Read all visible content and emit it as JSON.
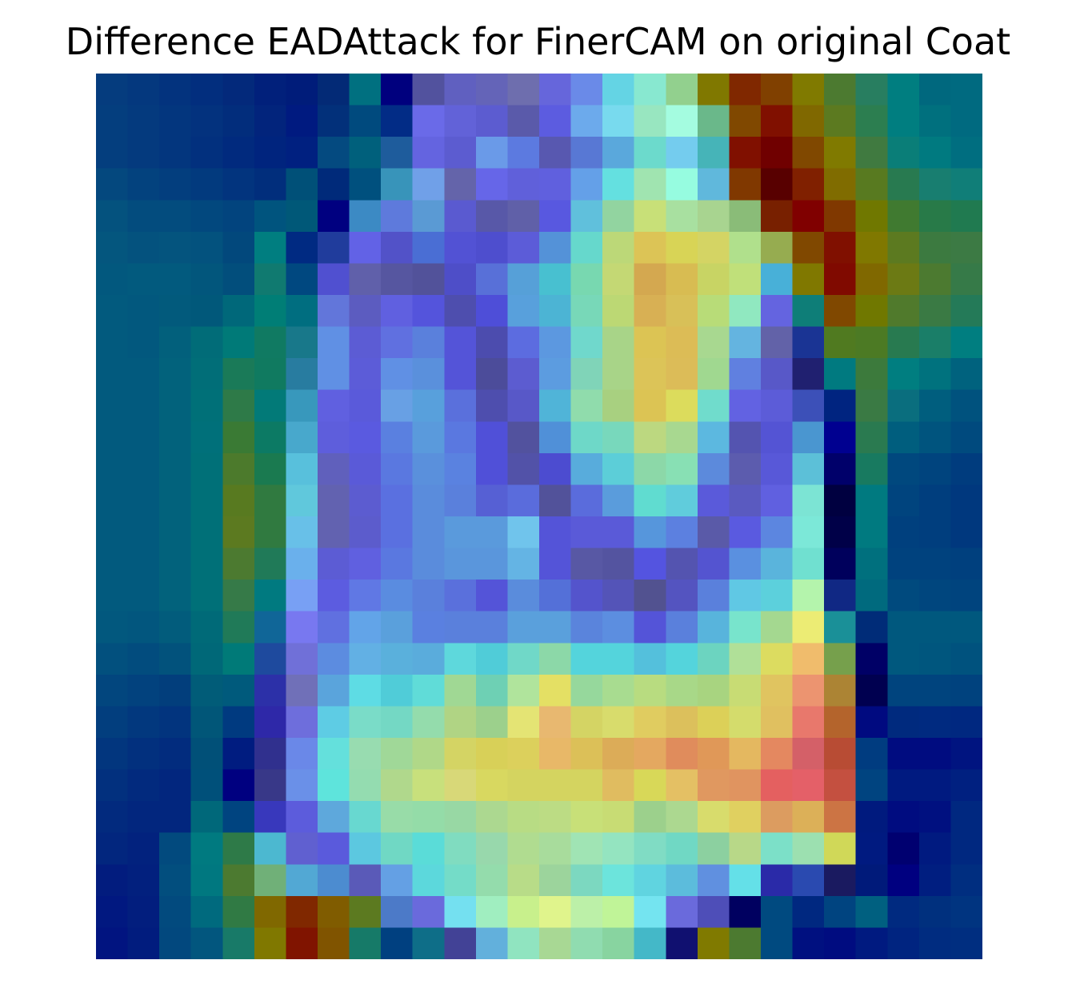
{
  "chart_data": {
    "type": "heatmap",
    "title": "Difference EADAttack for FinerCAM on original Coat",
    "xlabel": "",
    "ylabel": "",
    "axes_visible": false,
    "grid": false,
    "legend": "none",
    "colorscale": "jet overlaid on grayscale image",
    "rows": 28,
    "cols": 28,
    "cells": [
      [
        "#053C7E",
        "#04387E",
        "#03337E",
        "#022E7E",
        "#03297B",
        "#01207B",
        "#001C7A",
        "#032A76",
        "#007080",
        "#00007E",
        "#52529E",
        "#6060C0",
        "#6464B8",
        "#6E6EAE",
        "#6666DB",
        "#6A8AE8",
        "#64D4E4",
        "#88E8D0",
        "#92D08E",
        "#807800",
        "#802800",
        "#804000",
        "#807A00",
        "#4C7A30",
        "#287E60",
        "#007E80",
        "#00687E",
        "#006A80"
      ],
      [
        "#043E7E",
        "#043A7E",
        "#03367E",
        "#03327E",
        "#022D7C",
        "#02247C",
        "#001A80",
        "#02307A",
        "#004A7E",
        "#022C86",
        "#6A6AE8",
        "#6262D8",
        "#5C5CD0",
        "#5A5AAA",
        "#5C5CE0",
        "#6CAAEC",
        "#78DAEE",
        "#98E6C0",
        "#A4FCE0",
        "#6AB88A",
        "#804800",
        "#801000",
        "#806800",
        "#5C7A20",
        "#2C7E50",
        "#007E80",
        "#00707E",
        "#006A80"
      ],
      [
        "#043E7E",
        "#043A7E",
        "#03367E",
        "#02307E",
        "#012A7E",
        "#00247E",
        "#002080",
        "#044A80",
        "#00607C",
        "#1E5C9C",
        "#6464E0",
        "#5C5CD0",
        "#6A9AE8",
        "#5C7AE0",
        "#5858B0",
        "#5878D4",
        "#5AA8DC",
        "#6CDACC",
        "#74CCEE",
        "#46B4B8",
        "#801000",
        "#700000",
        "#804800",
        "#807A00",
        "#407A40",
        "#0A7E78",
        "#007A80",
        "#006E80"
      ],
      [
        "#04487E",
        "#03427E",
        "#033E7E",
        "#023A7E",
        "#02347E",
        "#012E7C",
        "#005078",
        "#002A7A",
        "#00507E",
        "#3894BA",
        "#70A0E8",
        "#6464AA",
        "#6666E8",
        "#6060DA",
        "#6060DE",
        "#64A0E8",
        "#64E0E0",
        "#A0E4B0",
        "#96FCE0",
        "#60B8DC",
        "#803800",
        "#580000",
        "#802000",
        "#806C00",
        "#587A20",
        "#287A50",
        "#187E70",
        "#107E78"
      ],
      [
        "#04527E",
        "#034C7E",
        "#034C7E",
        "#02487E",
        "#02447E",
        "#00547E",
        "#005878",
        "#000080",
        "#3C8AC4",
        "#5E7ADC",
        "#5A9AD4",
        "#5A5AD0",
        "#5858A8",
        "#6060A8",
        "#5858E0",
        "#60C0DC",
        "#92D4A0",
        "#C8E078",
        "#A8E0A0",
        "#A8D490",
        "#8ABC78",
        "#782000",
        "#800000",
        "#803800",
        "#707800",
        "#407A30",
        "#287A48",
        "#207A50"
      ],
      [
        "#04567E",
        "#04527E",
        "#04547E",
        "#03527E",
        "#02487C",
        "#007E80",
        "#002A82",
        "#203C9C",
        "#6262E6",
        "#5252C8",
        "#4A6ED4",
        "#5252D4",
        "#4E4ECE",
        "#5C5CD8",
        "#5492D8",
        "#66D8CC",
        "#BCD878",
        "#DCC456",
        "#D8D456",
        "#D4D464",
        "#B0E08C",
        "#96AC50",
        "#804800",
        "#801000",
        "#807800",
        "#5C7A20",
        "#3C7A40",
        "#3C7A44"
      ],
      [
        "#02587E",
        "#025A7E",
        "#025A7E",
        "#02567C",
        "#024E7C",
        "#107A70",
        "#004880",
        "#5050D0",
        "#6060AA",
        "#5656A0",
        "#52529A",
        "#4E4EC8",
        "#5870D8",
        "#56A0D8",
        "#48C0D0",
        "#78D8B0",
        "#C4D874",
        "#D4A850",
        "#D8BC52",
        "#C8D464",
        "#C0E07A",
        "#48B0D8",
        "#807800",
        "#800A00",
        "#806800",
        "#6C7A14",
        "#4C7A30",
        "#367A48"
      ],
      [
        "#025A7E",
        "#02587E",
        "#025A7C",
        "#01587A",
        "#00687A",
        "#007E76",
        "#006E80",
        "#6276DA",
        "#5C5CC0",
        "#6060E0",
        "#5454DC",
        "#4E4EAE",
        "#4E4ED8",
        "#58A0DC",
        "#4CB4D4",
        "#78D8B8",
        "#BCD874",
        "#D8B054",
        "#D8C058",
        "#B8DC78",
        "#90E8C0",
        "#6464E0",
        "#0E7E78",
        "#804800",
        "#707800",
        "#507A2C",
        "#3A7A44",
        "#247A58"
      ],
      [
        "#025A7E",
        "#02587E",
        "#02607C",
        "#016C78",
        "#007A78",
        "#107A62",
        "#18788A",
        "#6090E4",
        "#5C5CD4",
        "#6070E0",
        "#5A80DC",
        "#5454D8",
        "#4C4CAE",
        "#5C6CE0",
        "#5C98E0",
        "#70D8CC",
        "#A8D488",
        "#DCC454",
        "#DCBC56",
        "#A8D890",
        "#64B4E0",
        "#6262A8",
        "#1A3494",
        "#507A20",
        "#4C7A24",
        "#287A50",
        "#1A7E68",
        "#007E80"
      ],
      [
        "#025A7E",
        "#025A7E",
        "#02627C",
        "#016E78",
        "#1A7A58",
        "#107A60",
        "#287CA0",
        "#6090E4",
        "#5C5CD8",
        "#6090E4",
        "#5A90DC",
        "#5454D8",
        "#4C4C9A",
        "#5C5CD0",
        "#5C9CE0",
        "#80D4B8",
        "#A8D488",
        "#DCC458",
        "#DCBC58",
        "#A0D890",
        "#6080E0",
        "#5858C8",
        "#202070",
        "#007A80",
        "#3C7A3C",
        "#007E80",
        "#00727E",
        "#00627E"
      ],
      [
        "#025A7E",
        "#025A7E",
        "#02627C",
        "#007078",
        "#2E7A48",
        "#027A78",
        "#3898BC",
        "#6060E0",
        "#5A5ADA",
        "#68A0E4",
        "#58A0DC",
        "#5A70DC",
        "#4E4EAE",
        "#5858C8",
        "#50B4D8",
        "#90DCAC",
        "#A8D080",
        "#DCC454",
        "#DCDC5C",
        "#70DCCC",
        "#6262E2",
        "#5C5CD8",
        "#3C50B8",
        "#002480",
        "#3A7A44",
        "#0A6E7E",
        "#005E7E",
        "#00527E"
      ],
      [
        "#025A7E",
        "#025A7E",
        "#02627C",
        "#00707A",
        "#3A7A34",
        "#0C7A64",
        "#48A8CC",
        "#5E5EDC",
        "#5A5AE0",
        "#5A80E0",
        "#5A9ADC",
        "#5A78E0",
        "#5050D8",
        "#52529E",
        "#5090D8",
        "#6ED8C8",
        "#78D8BC",
        "#BCD880",
        "#A8D890",
        "#5CB8E0",
        "#5454B0",
        "#5454D4",
        "#4A96D0",
        "#000090",
        "#2A7A50",
        "#005E7E",
        "#00547E",
        "#004A7E"
      ],
      [
        "#025A7E",
        "#025A7E",
        "#02627C",
        "#007078",
        "#4C7A2C",
        "#1A7A50",
        "#58C0DC",
        "#6060BC",
        "#5A5AD8",
        "#5A78E0",
        "#5A90DC",
        "#5A82E0",
        "#5050D8",
        "#5252A8",
        "#4C4CD0",
        "#58ACDC",
        "#5CCED8",
        "#8CD8A8",
        "#88E0B4",
        "#5C8ADC",
        "#5C5CAE",
        "#5858D8",
        "#5CC0D8",
        "#00006A",
        "#187A60",
        "#00487E",
        "#00447E",
        "#003C7E"
      ],
      [
        "#025A7E",
        "#025A7E",
        "#02627C",
        "#007078",
        "#587A20",
        "#307A40",
        "#60C8DC",
        "#6262B0",
        "#5C5CD0",
        "#5A70E0",
        "#5A8CDC",
        "#5A80DC",
        "#5660D4",
        "#5A6CDC",
        "#52529A",
        "#5A6CDC",
        "#5A9CDC",
        "#60DCD0",
        "#60CCDC",
        "#5A5ADA",
        "#5A5AC0",
        "#6060E0",
        "#7CE4D4",
        "#000040",
        "#007A80",
        "#00447E",
        "#003E7E",
        "#00387E"
      ],
      [
        "#025A7E",
        "#025A7E",
        "#02627C",
        "#007078",
        "#5C7A20",
        "#307A40",
        "#68C0E8",
        "#6262B0",
        "#5C5CCC",
        "#5A70E0",
        "#5A8CDC",
        "#5A9ADC",
        "#5A9ADC",
        "#70C4EC",
        "#5454D8",
        "#5A5AD8",
        "#5A5AD8",
        "#5696DC",
        "#5C80E0",
        "#5A5AA8",
        "#5A5AE0",
        "#5C86E0",
        "#7CE8D8",
        "#000048",
        "#007A80",
        "#00407E",
        "#003E7E",
        "#00387E"
      ],
      [
        "#025A7E",
        "#025A7E",
        "#02627C",
        "#007078",
        "#4C7A30",
        "#207A58",
        "#6AB0EC",
        "#5C5CD4",
        "#6060E0",
        "#5A78E0",
        "#5A8CDC",
        "#5A96DC",
        "#5A96DC",
        "#64B4E4",
        "#5454D8",
        "#5858A4",
        "#5454A0",
        "#5454E0",
        "#5454B0",
        "#5454D0",
        "#5A90E0",
        "#5AB4DC",
        "#70E0D0",
        "#00005C",
        "#00707E",
        "#00427E",
        "#00427E",
        "#00407E"
      ],
      [
        "#025A7E",
        "#025A7E",
        "#02627C",
        "#007078",
        "#367A48",
        "#007A80",
        "#78A0F4",
        "#5C5CE0",
        "#6078E4",
        "#5A8CE0",
        "#5A80DC",
        "#5A70DC",
        "#5454D8",
        "#5A8CDC",
        "#5470D8",
        "#5454CC",
        "#5454B8",
        "#525290",
        "#5454C0",
        "#5A80DC",
        "#60C8E4",
        "#5CD0DC",
        "#B4F4AC",
        "#102884",
        "#006A7E",
        "#004A7E",
        "#00467E",
        "#00447E"
      ],
      [
        "#02587E",
        "#02567E",
        "#025C7C",
        "#006A78",
        "#207A58",
        "#106698",
        "#7878F0",
        "#6070E0",
        "#62A4E8",
        "#5AA0DC",
        "#5A80E0",
        "#5A80DC",
        "#5A80DC",
        "#5AA0DC",
        "#5AA0DC",
        "#5A84DC",
        "#5C8EE0",
        "#5454D8",
        "#5A80DC",
        "#58B4DC",
        "#78E4CC",
        "#A4D890",
        "#ECEC74",
        "#1A9098",
        "#002C78",
        "#00587E",
        "#00587E",
        "#00587E"
      ],
      [
        "#02507E",
        "#024C7E",
        "#02527C",
        "#006878",
        "#007A78",
        "#1E4A9E",
        "#7070D8",
        "#5C8CE0",
        "#62B0E4",
        "#5AB0DC",
        "#5AACDC",
        "#5ED8DC",
        "#50CCD8",
        "#70D8C8",
        "#8CD8A8",
        "#54D4DC",
        "#54D4DC",
        "#54C0DC",
        "#54D4DC",
        "#6CD4C0",
        "#B0E098",
        "#DCDC60",
        "#F0BC6C",
        "#76A04C",
        "#000066",
        "#00587E",
        "#00567E",
        "#00527E"
      ],
      [
        "#02467E",
        "#02427E",
        "#023E7C",
        "#015C78",
        "#005A7C",
        "#2C30A8",
        "#7070B8",
        "#5AA4DC",
        "#5EDCE4",
        "#50CCD8",
        "#60DCD8",
        "#A0D894",
        "#6ED0B4",
        "#B0E49C",
        "#E4E064",
        "#96D89C",
        "#A8DC90",
        "#B8DC80",
        "#A8D888",
        "#A8D480",
        "#C8DC74",
        "#E0C460",
        "#EC9470",
        "#AC8434",
        "#000050",
        "#00447E",
        "#00447E",
        "#00427E"
      ],
      [
        "#023E7E",
        "#02387E",
        "#02347E",
        "#015678",
        "#003A80",
        "#2E28A8",
        "#6E6EDC",
        "#5ECCE4",
        "#7ADCC8",
        "#74D8C4",
        "#94DCAC",
        "#B0D484",
        "#9CD08C",
        "#E4E474",
        "#E8B870",
        "#D4D464",
        "#D8DC6C",
        "#E0CC60",
        "#DCC05C",
        "#DCD058",
        "#D4DC6C",
        "#E0C060",
        "#E8786C",
        "#B4642C",
        "#000A80",
        "#002A7E",
        "#002A80",
        "#002880"
      ],
      [
        "#02367E",
        "#02307E",
        "#022C7E",
        "#015078",
        "#001C80",
        "#30308E",
        "#6A88E8",
        "#64E0DC",
        "#98DCB0",
        "#A0D898",
        "#B0D888",
        "#D4D464",
        "#D8D058",
        "#DCD05C",
        "#E8B868",
        "#DCC058",
        "#DCAC58",
        "#E4A860",
        "#E08C5C",
        "#E09858",
        "#E4B860",
        "#E48860",
        "#D46068",
        "#B84C34",
        "#003C80",
        "#000C80",
        "#000C80",
        "#001480"
      ],
      [
        "#02307E",
        "#022A7E",
        "#02267E",
        "#00507A",
        "#000080",
        "#383888",
        "#6A90E8",
        "#5EE4DC",
        "#94DCB0",
        "#B0D88C",
        "#C8E07C",
        "#D8D878",
        "#D8D860",
        "#D4D460",
        "#D4D460",
        "#D4D460",
        "#E0BC60",
        "#D8D858",
        "#E4C064",
        "#E09860",
        "#E09460",
        "#E46060",
        "#E46068",
        "#C45040",
        "#004480",
        "#001A80",
        "#001A80",
        "#002080"
      ],
      [
        "#022A7E",
        "#02267E",
        "#02267E",
        "#00687A",
        "#004480",
        "#3838BC",
        "#5C5CDC",
        "#5EA8DC",
        "#68D8D0",
        "#98DCA8",
        "#94DCA8",
        "#98D8A4",
        "#ACD890",
        "#B8DC84",
        "#BCDC84",
        "#C8E078",
        "#C8DC74",
        "#9CD08C",
        "#ACD890",
        "#D8DC6C",
        "#E0D060",
        "#DC9C60",
        "#DCB058",
        "#CC7444",
        "#001A7E",
        "#000C80",
        "#001080",
        "#002880"
      ],
      [
        "#02267E",
        "#02227E",
        "#024A7E",
        "#007A80",
        "#2E7A48",
        "#4CB8D0",
        "#6060D0",
        "#5A5ADC",
        "#5CC8E0",
        "#70D8C4",
        "#5ADCD8",
        "#80DCC0",
        "#98D8AC",
        "#B0DC90",
        "#A8DC9C",
        "#A0E4B4",
        "#94E4C0",
        "#80DCC4",
        "#70D8C4",
        "#8CD0A0",
        "#B8D888",
        "#7CE0C8",
        "#9CE0B0",
        "#D0D858",
        "#001A80",
        "#000070",
        "#001A80",
        "#002880"
      ],
      [
        "#021C7E",
        "#02207E",
        "#024E7E",
        "#007880",
        "#4C7A30",
        "#70B078",
        "#52A8D4",
        "#4C8CD0",
        "#5A5AB8",
        "#64A0E4",
        "#5CD8DC",
        "#74DCC8",
        "#94DCAC",
        "#B8DC88",
        "#9CD49C",
        "#7CD8C0",
        "#6CE4DC",
        "#60D4E0",
        "#5CBCDC",
        "#6090E0",
        "#64E0E8",
        "#2A2AA8",
        "#2A4AB0",
        "#1A1A60",
        "#001A7A",
        "#000080",
        "#001E80",
        "#002E80"
      ],
      [
        "#011880",
        "#021E7E",
        "#024A7E",
        "#006A7E",
        "#307A44",
        "#806800",
        "#802800",
        "#805C00",
        "#5C7A20",
        "#4C7AC8",
        "#6A6ADC",
        "#74E0F0",
        "#A0EEC0",
        "#C8F08C",
        "#E0F48C",
        "#BCF0A8",
        "#C0F498",
        "#74E4F0",
        "#6A6ADC",
        "#4E4EB8",
        "#000060",
        "#004A80",
        "#002880",
        "#004480",
        "#006080",
        "#002A80",
        "#00307E",
        "#003480"
      ],
      [
        "#011480",
        "#011C7E",
        "#02487E",
        "#02567E",
        "#187A68",
        "#807800",
        "#801400",
        "#805400",
        "#167A68",
        "#004080",
        "#0E6E88",
        "#424296",
        "#62B0DC",
        "#90E4C0",
        "#A8D894",
        "#90DCB0",
        "#88D4A0",
        "#44B8C8",
        "#101070",
        "#807A00",
        "#4C7A30",
        "#004A80",
        "#001080",
        "#000C80",
        "#001A80",
        "#002480",
        "#002C80",
        "#002E80"
      ]
    ]
  }
}
